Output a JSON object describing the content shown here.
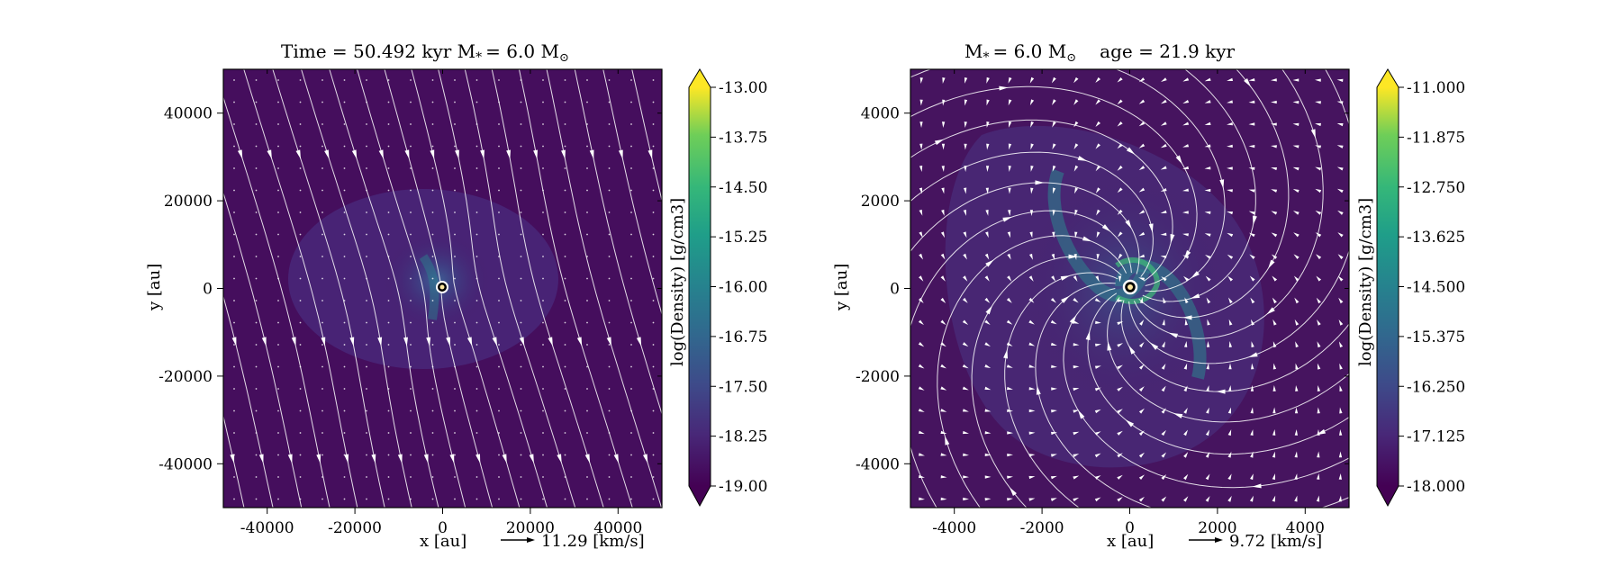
{
  "chart_data": [
    {
      "type": "heatmap",
      "title": "Time = 50.492 kyr    M$_*$ = 6.0 M$_\\odot$",
      "title_text": "Time = 50.492 kyr    M",
      "title_mass": "= 6.0 M",
      "xlabel": "x [au]",
      "ylabel": "y [au]",
      "xlim": [
        -50000,
        50000
      ],
      "ylim": [
        -50000,
        50000
      ],
      "xticks": [
        -40000,
        -20000,
        0,
        20000,
        40000
      ],
      "yticks": [
        -40000,
        -20000,
        0,
        20000,
        40000
      ],
      "colorbar": {
        "label": "log(Density) [g/cm3]",
        "min": -19.0,
        "max": -13.0,
        "ticks": [
          "-13.00",
          "-13.75",
          "-14.50",
          "-15.25",
          "-16.00",
          "-16.75",
          "-17.50",
          "-18.25",
          "-19.00"
        ],
        "extend": "both"
      },
      "velocity_key": {
        "value": "11.29",
        "unit": "[km/s]"
      },
      "flow": "mostly uniform diagonal infall with weak central density concentration",
      "grid": false
    },
    {
      "type": "heatmap",
      "title": "M$_*$ = 6.0 M$_\\odot$        age = 21.9 kyr",
      "title_text": "M",
      "title_mass": "= 6.0 M",
      "title_age": "age = 21.9 kyr",
      "xlabel": "x [au]",
      "ylabel": "y [au]",
      "xlim": [
        -5000,
        5000
      ],
      "ylim": [
        -5000,
        5000
      ],
      "xticks": [
        -4000,
        -2000,
        0,
        2000,
        4000
      ],
      "yticks": [
        -4000,
        -2000,
        0,
        2000,
        4000
      ],
      "colorbar": {
        "label": "log(Density) [g/cm3]",
        "min": -18.0,
        "max": -11.0,
        "ticks": [
          "-11.000",
          "-11.875",
          "-12.750",
          "-13.625",
          "-14.500",
          "-15.375",
          "-16.250",
          "-17.125",
          "-18.000"
        ],
        "extend": "both"
      },
      "velocity_key": {
        "value": "9.72",
        "unit": "[km/s]"
      },
      "flow": "spiral infall with two-armed density spiral around central star",
      "grid": false
    }
  ],
  "colors": {
    "background": "#440154",
    "mid": "#31688e",
    "high": "#35b779",
    "max": "#fde725",
    "streamlines": "#ffffff"
  }
}
